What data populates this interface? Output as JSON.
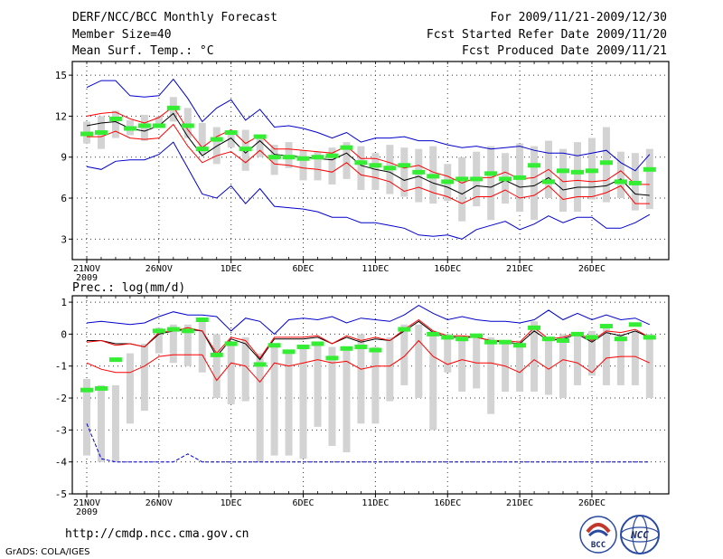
{
  "header": {
    "title": "DERF/NCC/BCC Monthly Forecast",
    "member_size": "Member Size=40",
    "variable": "Mean Surf. Temp.: °C",
    "period": "For 2009/11/21-2009/12/30",
    "fcst_started": "Fcst Started Refer Date 2009/11/20",
    "fcst_produced": "Fcst Produced Date 2009/11/21"
  },
  "footer": {
    "url": "http://cmdp.ncc.cma.gov.cn",
    "credit": "GrADS: COLA/IGES",
    "logo_bcc": "BCC",
    "logo_ncc": "NCC"
  },
  "colors": {
    "ensemble_mean": "#000000",
    "spread_band": "#ff0000",
    "extreme_envelope": "#0000cc",
    "observed_ref": "#33ee33",
    "box_range": "#d3d3d3",
    "grid": "#333333"
  },
  "chart_data": [
    {
      "type": "line",
      "title": "Mean Surf. Temp.: °C",
      "x_tick_labels": [
        "21NOV",
        "26NOV",
        "1DEC",
        "6DEC",
        "11DEC",
        "16DEC",
        "21DEC",
        "26DEC"
      ],
      "x_year_label": "2009",
      "ylim": [
        1.5,
        16
      ],
      "yticks": [
        3,
        6,
        9,
        12,
        15
      ],
      "days": 40,
      "series": [
        {
          "name": "ensemble_max",
          "color": "#0000cc",
          "values": [
            14.1,
            14.6,
            14.6,
            13.5,
            13.4,
            13.5,
            14.7,
            13.3,
            11.6,
            12.6,
            13.2,
            11.7,
            12.5,
            11.2,
            11.3,
            11.1,
            10.8,
            10.4,
            10.8,
            10.1,
            10.4,
            10.4,
            10.5,
            10.2,
            10.2,
            9.9,
            9.7,
            9.8,
            9.6,
            9.7,
            9.8,
            9.5,
            9.3,
            9.3,
            9.1,
            9.3,
            9.5,
            8.6,
            8.0,
            9.2
          ]
        },
        {
          "name": "upper_band",
          "color": "#ff0000",
          "values": [
            12.0,
            12.2,
            12.3,
            11.8,
            11.5,
            11.9,
            12.7,
            11.0,
            9.7,
            10.5,
            11.0,
            10.0,
            10.6,
            9.6,
            9.6,
            9.5,
            9.4,
            9.3,
            9.8,
            8.9,
            8.9,
            8.6,
            8.2,
            8.4,
            7.9,
            7.6,
            7.1,
            7.5,
            7.5,
            7.9,
            7.4,
            7.5,
            8.1,
            7.2,
            7.3,
            7.2,
            7.3,
            8.0,
            7.0,
            7.0
          ]
        },
        {
          "name": "ensemble_mean",
          "color": "#000000",
          "values": [
            11.3,
            11.5,
            11.6,
            11.1,
            10.9,
            11.3,
            12.2,
            10.5,
            9.1,
            9.8,
            10.4,
            9.3,
            10.2,
            9.2,
            9.1,
            9.0,
            8.9,
            8.8,
            9.3,
            8.4,
            8.1,
            7.9,
            7.3,
            7.6,
            7.1,
            6.8,
            6.3,
            6.9,
            6.8,
            7.3,
            6.8,
            6.9,
            7.5,
            6.6,
            6.8,
            6.8,
            6.9,
            7.4,
            6.3,
            6.2
          ]
        },
        {
          "name": "lower_band",
          "color": "#ff0000",
          "values": [
            10.5,
            10.5,
            10.9,
            10.4,
            10.3,
            10.4,
            11.4,
            9.8,
            8.6,
            9.1,
            9.4,
            8.6,
            9.5,
            8.5,
            8.4,
            8.2,
            8.1,
            7.9,
            8.6,
            7.7,
            7.5,
            7.2,
            6.5,
            6.8,
            6.4,
            6.1,
            5.6,
            6.1,
            6.1,
            6.6,
            6.0,
            6.2,
            6.9,
            5.9,
            6.1,
            6.1,
            6.4,
            6.9,
            5.6,
            5.6
          ]
        },
        {
          "name": "ensemble_min",
          "color": "#0000cc",
          "values": [
            8.3,
            8.1,
            8.7,
            8.8,
            8.8,
            9.2,
            10.1,
            8.2,
            6.3,
            6.0,
            6.9,
            5.6,
            6.7,
            5.4,
            5.3,
            5.2,
            5.0,
            4.6,
            4.6,
            4.2,
            4.2,
            4.0,
            3.8,
            3.3,
            3.2,
            3.3,
            3.0,
            3.7,
            4.0,
            4.3,
            3.7,
            4.1,
            4.7,
            4.2,
            4.6,
            4.6,
            3.8,
            3.8,
            4.2,
            4.8
          ]
        }
      ],
      "reference_marks": [
        10.7,
        10.8,
        11.8,
        11.1,
        11.3,
        11.3,
        12.6,
        11.3,
        9.6,
        10.3,
        10.8,
        9.6,
        10.5,
        9.0,
        9.0,
        8.9,
        9.0,
        9.1,
        9.7,
        8.6,
        8.4,
        8.2,
        8.4,
        7.9,
        7.6,
        7.2,
        7.4,
        7.4,
        7.8,
        7.4,
        7.5,
        8.4,
        7.2,
        8.0,
        7.9,
        8.0,
        8.6,
        7.2,
        7.1,
        8.1
      ],
      "box_ranges": [
        [
          10,
          11.6
        ],
        [
          9.6,
          12
        ],
        [
          10.4,
          12.4
        ],
        [
          10.6,
          11.7
        ],
        [
          10.2,
          12.1
        ],
        [
          11.4,
          12
        ],
        [
          11.6,
          13.4
        ],
        [
          10.4,
          12.6
        ],
        [
          9.2,
          11.5
        ],
        [
          8.5,
          11.2
        ],
        [
          9.7,
          10.8
        ],
        [
          8,
          11
        ],
        [
          9,
          10.6
        ],
        [
          7.7,
          9.9
        ],
        [
          8.2,
          10.1
        ],
        [
          7.3,
          9.5
        ],
        [
          7.3,
          9.4
        ],
        [
          7,
          9.7
        ],
        [
          7.4,
          10.1
        ],
        [
          6.6,
          9.8
        ],
        [
          6.6,
          9.3
        ],
        [
          6.3,
          9.9
        ],
        [
          6.1,
          9.7
        ],
        [
          5.7,
          9.6
        ],
        [
          5.6,
          9.8
        ],
        [
          5.8,
          8.5
        ],
        [
          4.3,
          9
        ],
        [
          5.4,
          9.4
        ],
        [
          4.4,
          9.8
        ],
        [
          5.6,
          9.3
        ],
        [
          5,
          10
        ],
        [
          4.4,
          9.8
        ],
        [
          6,
          10.2
        ],
        [
          5,
          9.6
        ],
        [
          5,
          10.1
        ],
        [
          5.9,
          10.4
        ],
        [
          5.7,
          11.2
        ],
        [
          6,
          9.4
        ],
        [
          5.1,
          9.3
        ],
        [
          5.2,
          9.6
        ]
      ]
    },
    {
      "type": "line",
      "title": "Prec.: log(mm/d)",
      "x_tick_labels": [
        "21NOV",
        "26NOV",
        "1DEC",
        "6DEC",
        "11DEC",
        "16DEC",
        "21DEC",
        "26DEC"
      ],
      "x_year_label": "2009",
      "ylim": [
        -5,
        1.2
      ],
      "yticks": [
        -5,
        -4,
        -3,
        -2,
        -1,
        0,
        1
      ],
      "days": 40,
      "series": [
        {
          "name": "ensemble_max",
          "color": "#0000cc",
          "values": [
            0.35,
            0.4,
            0.35,
            0.3,
            0.35,
            0.55,
            0.7,
            0.6,
            0.6,
            0.55,
            0.1,
            0.5,
            0.4,
            0.0,
            0.45,
            0.5,
            0.45,
            0.55,
            0.35,
            0.5,
            0.45,
            0.4,
            0.6,
            0.9,
            0.65,
            0.45,
            0.55,
            0.45,
            0.4,
            0.4,
            0.35,
            0.45,
            0.75,
            0.45,
            0.65,
            0.45,
            0.6,
            0.45,
            0.5,
            0.3
          ]
        },
        {
          "name": "ensemble_mean",
          "color": "#000000",
          "values": [
            -0.2,
            -0.2,
            -0.3,
            -0.3,
            -0.4,
            0.0,
            0.1,
            0.15,
            0.1,
            -0.7,
            -0.15,
            -0.3,
            -0.8,
            -0.15,
            -0.15,
            -0.15,
            -0.1,
            -0.3,
            -0.1,
            -0.25,
            -0.15,
            -0.2,
            0.1,
            0.4,
            0.05,
            -0.1,
            -0.1,
            -0.1,
            -0.2,
            -0.25,
            -0.3,
            0.1,
            -0.2,
            -0.15,
            0.0,
            -0.25,
            0.05,
            -0.05,
            0.1,
            -0.1
          ]
        },
        {
          "name": "upper_band",
          "color": "#ff0000",
          "values": [
            -0.25,
            -0.2,
            -0.35,
            -0.3,
            -0.4,
            0.05,
            0.1,
            0.2,
            0.1,
            -0.6,
            -0.1,
            -0.2,
            -0.75,
            -0.1,
            -0.1,
            -0.1,
            -0.05,
            -0.3,
            -0.05,
            -0.2,
            -0.1,
            -0.2,
            0.15,
            0.45,
            0.1,
            -0.05,
            -0.05,
            -0.1,
            -0.2,
            -0.2,
            -0.25,
            0.2,
            -0.15,
            -0.1,
            0.05,
            -0.2,
            0.1,
            0.05,
            0.15,
            -0.1
          ]
        },
        {
          "name": "lower_band",
          "color": "#ff0000",
          "values": [
            -0.9,
            -1.1,
            -1.2,
            -1.2,
            -1.0,
            -0.7,
            -0.65,
            -0.65,
            -0.65,
            -1.45,
            -0.9,
            -1.0,
            -1.5,
            -0.9,
            -1.0,
            -0.9,
            -0.8,
            -0.9,
            -0.85,
            -1.1,
            -1.0,
            -1.0,
            -0.7,
            -0.2,
            -0.7,
            -0.95,
            -0.8,
            -0.9,
            -0.9,
            -1.0,
            -1.2,
            -0.8,
            -1.1,
            -0.8,
            -0.9,
            -1.2,
            -0.75,
            -0.7,
            -0.7,
            -0.9
          ]
        },
        {
          "name": "ensemble_min",
          "color": "#0000cc",
          "values": [
            -2.8,
            -3.9,
            -4,
            -4,
            -4,
            -4,
            -4,
            -3.75,
            -4,
            -4,
            -4,
            -4,
            -4,
            -4,
            -4,
            -4,
            -4,
            -4,
            -4,
            -4,
            -4,
            -4,
            -4,
            -4,
            -4,
            -4,
            -4,
            -4,
            -4,
            -4,
            -4,
            -4,
            -4,
            -4,
            -4,
            -4,
            -4,
            -4,
            -4,
            -4
          ]
        }
      ],
      "reference_marks": [
        -1.75,
        -1.7,
        -0.8,
        null,
        null,
        0.1,
        0.15,
        0.1,
        0.45,
        -0.65,
        -0.3,
        null,
        -0.95,
        -0.35,
        -0.55,
        -0.4,
        -0.3,
        -0.75,
        -0.45,
        -0.4,
        -0.5,
        null,
        0.15,
        null,
        0.0,
        -0.1,
        -0.15,
        -0.05,
        -0.25,
        -0.25,
        -0.35,
        0.2,
        -0.15,
        -0.2,
        0.0,
        -0.1,
        0.25,
        -0.15,
        0.3,
        -0.1
      ],
      "box_ranges": [
        [
          -3.8,
          -1.4
        ],
        [
          -4,
          -1.6
        ],
        [
          -4,
          -1.6
        ],
        [
          -2.8,
          -0.6
        ],
        [
          -2.4,
          -0.3
        ],
        [
          -0.6,
          0.2
        ],
        [
          -0.9,
          0.3
        ],
        [
          -1.0,
          0.3
        ],
        [
          -1.2,
          0.5
        ],
        [
          -2.0,
          0.0
        ],
        [
          -2.2,
          -0.3
        ],
        [
          -2.1,
          -0.1
        ],
        [
          -4.0,
          -0.6
        ],
        [
          -3.8,
          -0.3
        ],
        [
          -3.8,
          -0.5
        ],
        [
          -3.9,
          -0.4
        ],
        [
          -2.9,
          -0.3
        ],
        [
          -3.5,
          -0.4
        ],
        [
          -3.7,
          -0.5
        ],
        [
          -2.8,
          0.0
        ],
        [
          -2.8,
          -0.4
        ],
        [
          -2.1,
          -0.1
        ],
        [
          -1.6,
          0.3
        ],
        [
          -2.0,
          0.3
        ],
        [
          -3.0,
          0.1
        ],
        [
          -1.2,
          0.0
        ],
        [
          -1.8,
          -0.1
        ],
        [
          -1.7,
          0.0
        ],
        [
          -2.5,
          -0.1
        ],
        [
          -1.8,
          -0.2
        ],
        [
          -1.8,
          -0.2
        ],
        [
          -1.8,
          0.4
        ],
        [
          -1.9,
          -0.1
        ],
        [
          -2.0,
          0.0
        ],
        [
          -1.6,
          0.0
        ],
        [
          -1.3,
          0.1
        ],
        [
          -1.6,
          0.3
        ],
        [
          -1.6,
          0.0
        ],
        [
          -1.6,
          0.1
        ],
        [
          -2.0,
          0.0
        ]
      ]
    }
  ]
}
